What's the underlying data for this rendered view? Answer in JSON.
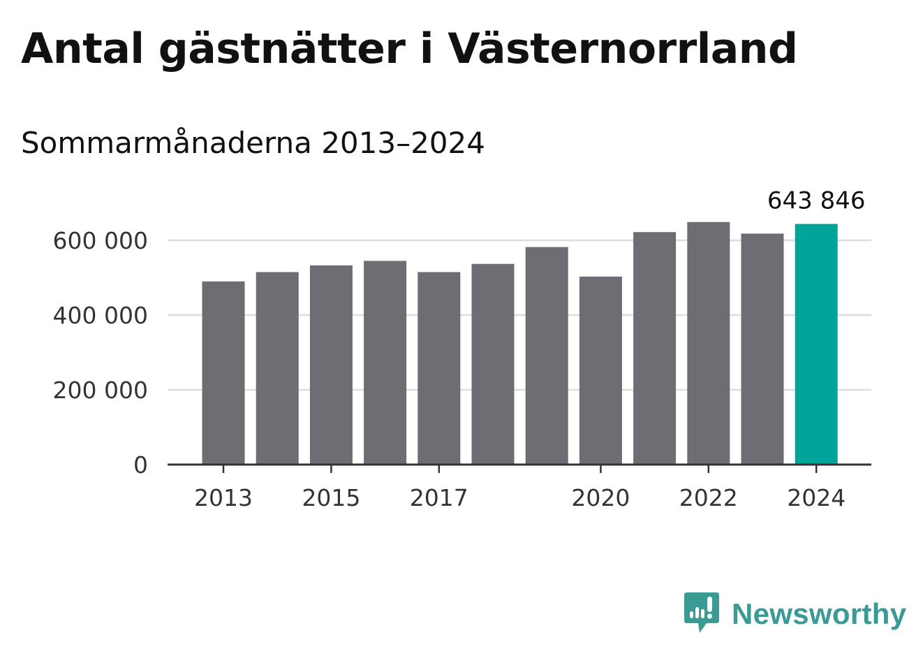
{
  "header": {
    "title": "Antal gästnätter i Västernorrland",
    "subtitle": "Sommarmånaderna 2013–2024"
  },
  "brand": {
    "name": "Newsworthy",
    "icon": "newsworthy-logo-icon",
    "color": "#3a9a94"
  },
  "colors": {
    "bar": "#6e6d73",
    "highlight": "#00a499",
    "grid": "#dddddd",
    "axis": "#333333"
  },
  "chart_data": {
    "type": "bar",
    "title": "Antal gästnätter i Västernorrland",
    "subtitle": "Sommarmånaderna 2013–2024",
    "categories": [
      "2013",
      "2014",
      "2015",
      "2016",
      "2017",
      "2018",
      "2019",
      "2020",
      "2021",
      "2022",
      "2023",
      "2024"
    ],
    "values": [
      490000,
      515000,
      533000,
      545000,
      515000,
      537000,
      582000,
      503000,
      622000,
      649000,
      618000,
      643846
    ],
    "highlight_category": "2024",
    "value_labels": [
      {
        "category": "2024",
        "text": "643 846"
      }
    ],
    "x_tick_labels": [
      "2013",
      "2015",
      "2017",
      "2020",
      "2022",
      "2024"
    ],
    "y_ticks": [
      0,
      200000,
      400000,
      600000
    ],
    "y_tick_labels": [
      "0",
      "200 000",
      "400 000",
      "600 000"
    ],
    "ylim": [
      0,
      650000
    ],
    "xlabel": "",
    "ylabel": "",
    "grid": true,
    "legend": "none"
  }
}
